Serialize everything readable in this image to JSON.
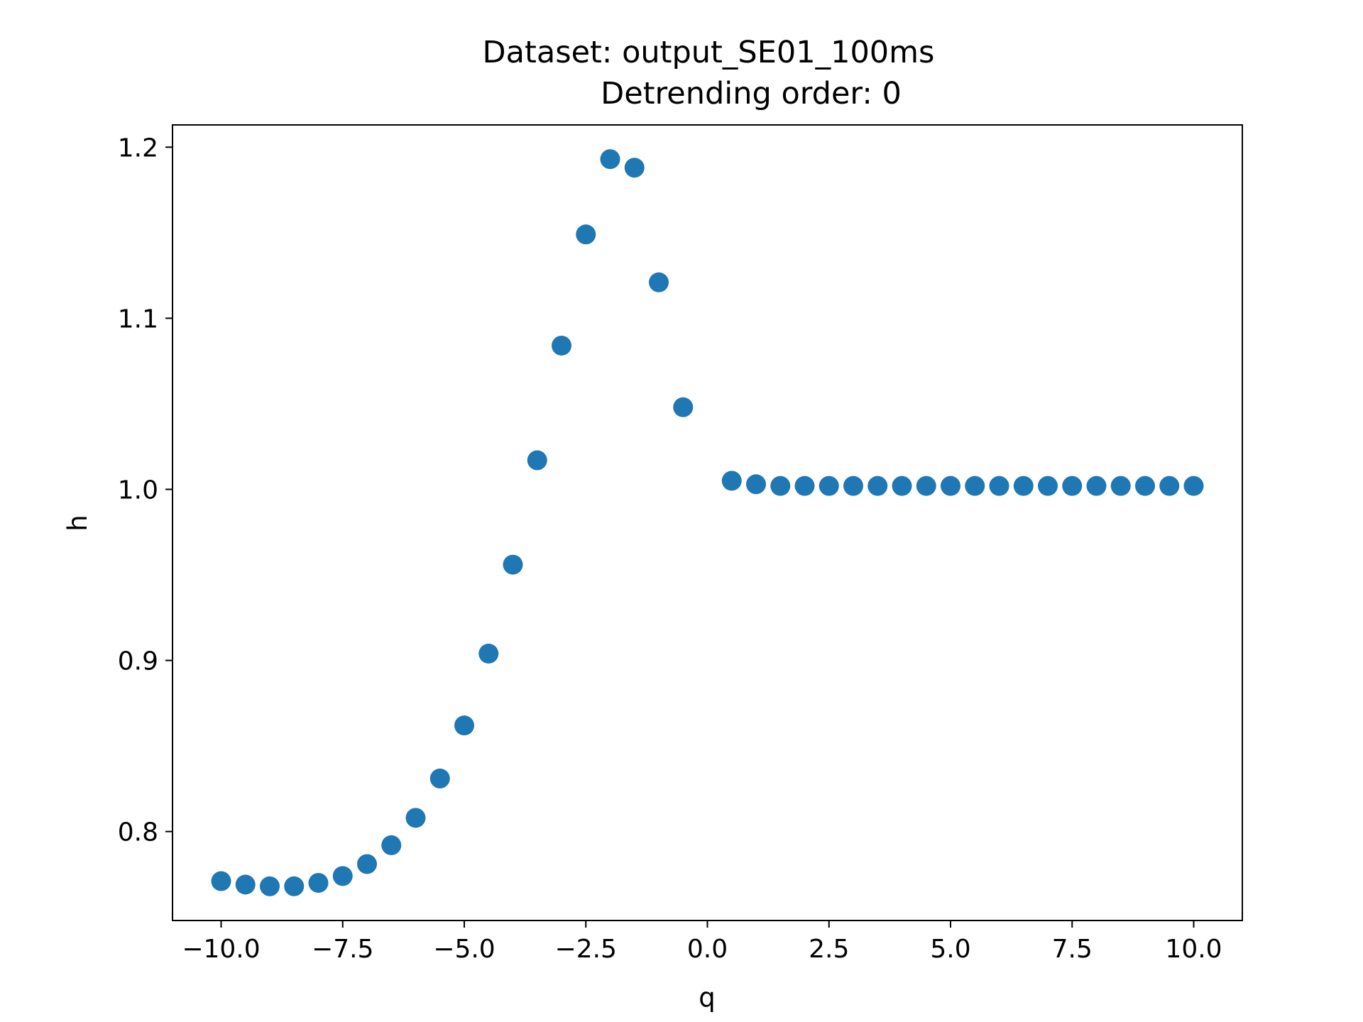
{
  "chart_data": {
    "type": "scatter",
    "title_lines": [
      "Dataset: output_SE01_100ms",
      "Detrending order: 0"
    ],
    "xlabel": "q",
    "ylabel": "h",
    "xlim": [
      -11.0,
      11.0
    ],
    "ylim": [
      0.748,
      1.213
    ],
    "x_ticks": [
      -10.0,
      -7.5,
      -5.0,
      -2.5,
      0.0,
      2.5,
      5.0,
      7.5,
      10.0
    ],
    "x_tick_labels": [
      "−10.0",
      "−7.5",
      "−5.0",
      "−2.5",
      "0.0",
      "2.5",
      "5.0",
      "7.5",
      "10.0"
    ],
    "y_ticks": [
      0.8,
      0.9,
      1.0,
      1.1,
      1.2
    ],
    "y_tick_labels": [
      "0.8",
      "0.9",
      "1.0",
      "1.1",
      "1.2"
    ],
    "grid": false,
    "marker_color": "#1f77b4",
    "series": [
      {
        "x": [
          -10.0,
          -9.5,
          -9.0,
          -8.5,
          -8.0,
          -7.5,
          -7.0,
          -6.5,
          -6.0,
          -5.5,
          -5.0,
          -4.5,
          -4.0,
          -3.5,
          -3.0,
          -2.5,
          -2.0,
          -1.5,
          -1.0,
          -0.5,
          0.5,
          1.0,
          1.5,
          2.0,
          2.5,
          3.0,
          3.5,
          4.0,
          4.5,
          5.0,
          5.5,
          6.0,
          6.5,
          7.0,
          7.5,
          8.0,
          8.5,
          9.0,
          9.5,
          10.0
        ],
        "y": [
          0.771,
          0.769,
          0.768,
          0.768,
          0.77,
          0.774,
          0.781,
          0.792,
          0.808,
          0.831,
          0.862,
          0.904,
          0.956,
          1.017,
          1.084,
          1.149,
          1.193,
          1.188,
          1.121,
          1.048,
          1.005,
          1.003,
          1.002,
          1.002,
          1.002,
          1.002,
          1.002,
          1.002,
          1.002,
          1.002,
          1.002,
          1.002,
          1.002,
          1.002,
          1.002,
          1.002,
          1.002,
          1.002,
          1.002,
          1.002
        ]
      }
    ]
  }
}
